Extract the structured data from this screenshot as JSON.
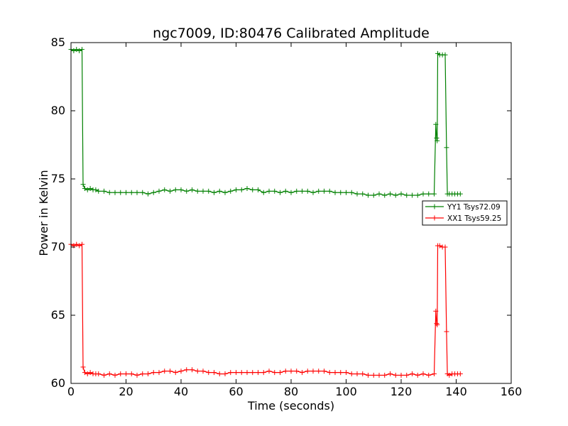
{
  "chart_data": {
    "type": "line",
    "title": "ngc7009, ID:80476 Calibrated Amplitude",
    "xlabel": "Time (seconds)",
    "ylabel": "Power in Kelvin",
    "xlim": [
      0,
      160
    ],
    "ylim": [
      60,
      85
    ],
    "xticks": [
      0,
      20,
      40,
      60,
      80,
      100,
      120,
      140,
      160
    ],
    "yticks": [
      60,
      65,
      70,
      75,
      80,
      85
    ],
    "grid": false,
    "legend_position": "right",
    "series": [
      {
        "name": "YY1 Tsys72.09",
        "color": "#008000",
        "marker": "plus",
        "x": [
          0,
          1,
          2,
          3,
          4,
          4.4,
          5,
          6,
          7,
          8,
          9,
          10,
          12,
          14,
          16,
          18,
          20,
          22,
          24,
          26,
          28,
          30,
          32,
          34,
          36,
          38,
          40,
          42,
          44,
          46,
          48,
          50,
          52,
          54,
          56,
          58,
          60,
          62,
          64,
          66,
          68,
          70,
          72,
          74,
          76,
          78,
          80,
          82,
          84,
          86,
          88,
          90,
          92,
          94,
          96,
          98,
          100,
          102,
          104,
          106,
          108,
          110,
          112,
          114,
          116,
          118,
          120,
          122,
          124,
          126,
          128,
          130,
          132,
          132.6,
          132.9,
          133.1,
          133.3,
          134,
          135,
          136,
          136.5,
          136.8,
          137.5,
          138.5,
          139.5,
          140.5,
          141.5
        ],
        "y": [
          84.5,
          84.4,
          84.5,
          84.4,
          84.5,
          74.6,
          74.3,
          74.2,
          74.3,
          74.2,
          74.2,
          74.1,
          74.1,
          74.0,
          74.0,
          74.0,
          74.0,
          74.0,
          74.0,
          74.0,
          73.9,
          74.0,
          74.1,
          74.2,
          74.1,
          74.2,
          74.2,
          74.1,
          74.2,
          74.1,
          74.1,
          74.1,
          74.0,
          74.1,
          74.0,
          74.1,
          74.2,
          74.2,
          74.3,
          74.2,
          74.2,
          74.0,
          74.1,
          74.1,
          74.0,
          74.1,
          74.0,
          74.1,
          74.1,
          74.1,
          74.0,
          74.1,
          74.1,
          74.1,
          74.0,
          74.0,
          74.0,
          74.0,
          73.9,
          73.9,
          73.8,
          73.8,
          73.9,
          73.8,
          73.9,
          73.8,
          73.9,
          73.8,
          73.8,
          73.8,
          73.9,
          73.9,
          73.9,
          79.0,
          78.0,
          77.8,
          84.2,
          84.1,
          84.1,
          84.1,
          77.3,
          73.9,
          73.9,
          73.9,
          73.9,
          73.9,
          73.9
        ]
      },
      {
        "name": "XX1 Tsys59.25",
        "color": "#ff0000",
        "marker": "plus",
        "x": [
          0,
          1,
          2,
          3,
          4,
          4.4,
          5,
          6,
          7,
          8,
          9,
          10,
          12,
          14,
          16,
          18,
          20,
          22,
          24,
          26,
          28,
          30,
          32,
          34,
          36,
          38,
          40,
          42,
          44,
          46,
          48,
          50,
          52,
          54,
          56,
          58,
          60,
          62,
          64,
          66,
          68,
          70,
          72,
          74,
          76,
          78,
          80,
          82,
          84,
          86,
          88,
          90,
          92,
          94,
          96,
          98,
          100,
          102,
          104,
          106,
          108,
          110,
          112,
          114,
          116,
          118,
          120,
          122,
          124,
          126,
          128,
          130,
          132,
          132.6,
          132.9,
          133.1,
          133.3,
          134,
          135,
          136,
          136.5,
          136.8,
          137.5,
          138.5,
          139.5,
          140.5,
          141.5
        ],
        "y": [
          70.2,
          70.1,
          70.2,
          70.1,
          70.2,
          61.2,
          60.8,
          60.7,
          60.8,
          60.7,
          60.7,
          60.7,
          60.6,
          60.7,
          60.6,
          60.7,
          60.7,
          60.7,
          60.6,
          60.7,
          60.7,
          60.8,
          60.8,
          60.9,
          60.9,
          60.8,
          60.9,
          61.0,
          61.0,
          60.9,
          60.9,
          60.8,
          60.8,
          60.7,
          60.7,
          60.8,
          60.8,
          60.8,
          60.8,
          60.8,
          60.8,
          60.8,
          60.9,
          60.8,
          60.8,
          60.9,
          60.9,
          60.9,
          60.8,
          60.9,
          60.9,
          60.9,
          60.9,
          60.8,
          60.8,
          60.8,
          60.8,
          60.7,
          60.7,
          60.7,
          60.6,
          60.6,
          60.6,
          60.6,
          60.7,
          60.6,
          60.6,
          60.6,
          60.7,
          60.6,
          60.7,
          60.6,
          60.7,
          65.3,
          64.4,
          64.3,
          70.1,
          70.1,
          70.0,
          70.0,
          63.8,
          60.7,
          60.6,
          60.7,
          60.7,
          60.7,
          60.7
        ]
      }
    ]
  }
}
